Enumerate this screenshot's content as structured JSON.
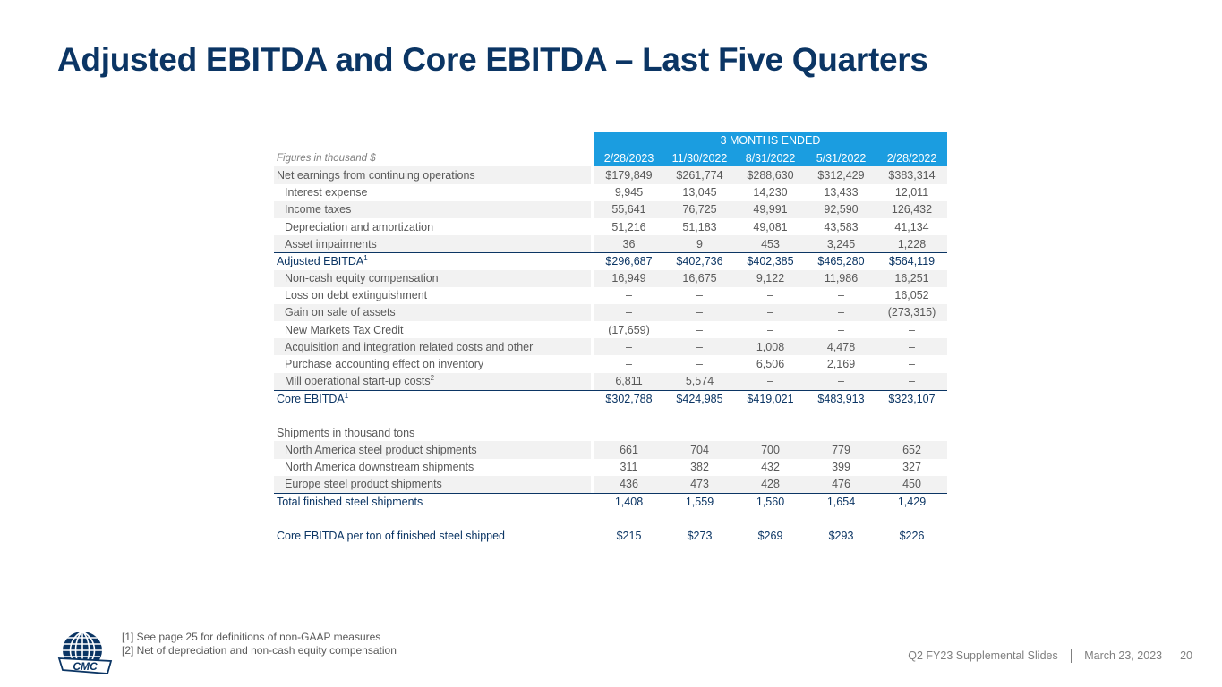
{
  "title": "Adjusted EBITDA and Core EBITDA – Last Five Quarters",
  "table": {
    "period_header": "3 MONTHS ENDED",
    "figures_label": "Figures in thousand $",
    "columns": [
      "2/28/2023",
      "11/30/2022",
      "8/31/2022",
      "5/31/2022",
      "2/28/2022"
    ],
    "rows": {
      "net_earnings": {
        "label": "Net earnings from continuing operations",
        "values": [
          "$179,849",
          "$261,774",
          "$288,630",
          "$312,429",
          "$383,314"
        ]
      },
      "interest": {
        "label": "Interest expense",
        "values": [
          "9,945",
          "13,045",
          "14,230",
          "13,433",
          "12,011"
        ]
      },
      "income_taxes": {
        "label": "Income taxes",
        "values": [
          "55,641",
          "76,725",
          "49,991",
          "92,590",
          "126,432"
        ]
      },
      "depreciation": {
        "label": "Depreciation and amortization",
        "values": [
          "51,216",
          "51,183",
          "49,081",
          "43,583",
          "41,134"
        ]
      },
      "impairments": {
        "label": "Asset impairments",
        "values": [
          "36",
          "9",
          "453",
          "3,245",
          "1,228"
        ]
      },
      "adjusted_ebitda": {
        "label": "Adjusted EBITDA",
        "sup": "1",
        "values": [
          "$296,687",
          "$402,736",
          "$402,385",
          "$465,280",
          "$564,119"
        ]
      },
      "equity_comp": {
        "label": "Non-cash equity compensation",
        "values": [
          "16,949",
          "16,675",
          "9,122",
          "11,986",
          "16,251"
        ]
      },
      "debt_ext": {
        "label": "Loss on debt extinguishment",
        "values": [
          "–",
          "–",
          "–",
          "–",
          "16,052"
        ]
      },
      "gain_sale": {
        "label": "Gain on sale of assets",
        "values": [
          "–",
          "–",
          "–",
          "–",
          "(273,315)"
        ]
      },
      "nmtc": {
        "label": "New Markets Tax Credit",
        "values": [
          "(17,659)",
          "–",
          "–",
          "–",
          "–"
        ]
      },
      "acquisition": {
        "label": "Acquisition and integration related costs and other",
        "values": [
          "–",
          "–",
          "1,008",
          "4,478",
          "–"
        ]
      },
      "purchase_acct": {
        "label": "Purchase accounting effect on inventory",
        "values": [
          "–",
          "–",
          "6,506",
          "2,169",
          "–"
        ]
      },
      "mill_startup": {
        "label": "Mill operational start-up costs",
        "sup": "2",
        "values": [
          "6,811",
          "5,574",
          "–",
          "–",
          "–"
        ]
      },
      "core_ebitda": {
        "label": "Core EBITDA",
        "sup": "1",
        "values": [
          "$302,788",
          "$424,985",
          "$419,021",
          "$483,913",
          "$323,107"
        ]
      },
      "shipments_header": {
        "label": "Shipments in thousand tons"
      },
      "na_steel": {
        "label": "North America steel product shipments",
        "values": [
          "661",
          "704",
          "700",
          "779",
          "652"
        ]
      },
      "na_downstream": {
        "label": "North America downstream shipments",
        "values": [
          "311",
          "382",
          "432",
          "399",
          "327"
        ]
      },
      "europe_steel": {
        "label": "Europe steel product shipments",
        "values": [
          "436",
          "473",
          "428",
          "476",
          "450"
        ]
      },
      "total_shipments": {
        "label": "Total finished steel shipments",
        "values": [
          "1,408",
          "1,559",
          "1,560",
          "1,654",
          "1,429"
        ]
      },
      "per_ton": {
        "label": "Core EBITDA per ton of finished steel shipped",
        "values": [
          "$215",
          "$273",
          "$269",
          "$293",
          "$226"
        ]
      }
    }
  },
  "footnotes": [
    "[1] See page 25 for definitions of non-GAAP measures",
    "[2] Net of depreciation and non-cash equity compensation"
  ],
  "logo_text": "CMC",
  "footer": {
    "deck": "Q2 FY23 Supplemental Slides",
    "date": "March 23, 2023",
    "page": "20"
  },
  "colors": {
    "title": "#0b3564",
    "header_band": "#1b9de0",
    "shade": "#f2f2f2"
  }
}
